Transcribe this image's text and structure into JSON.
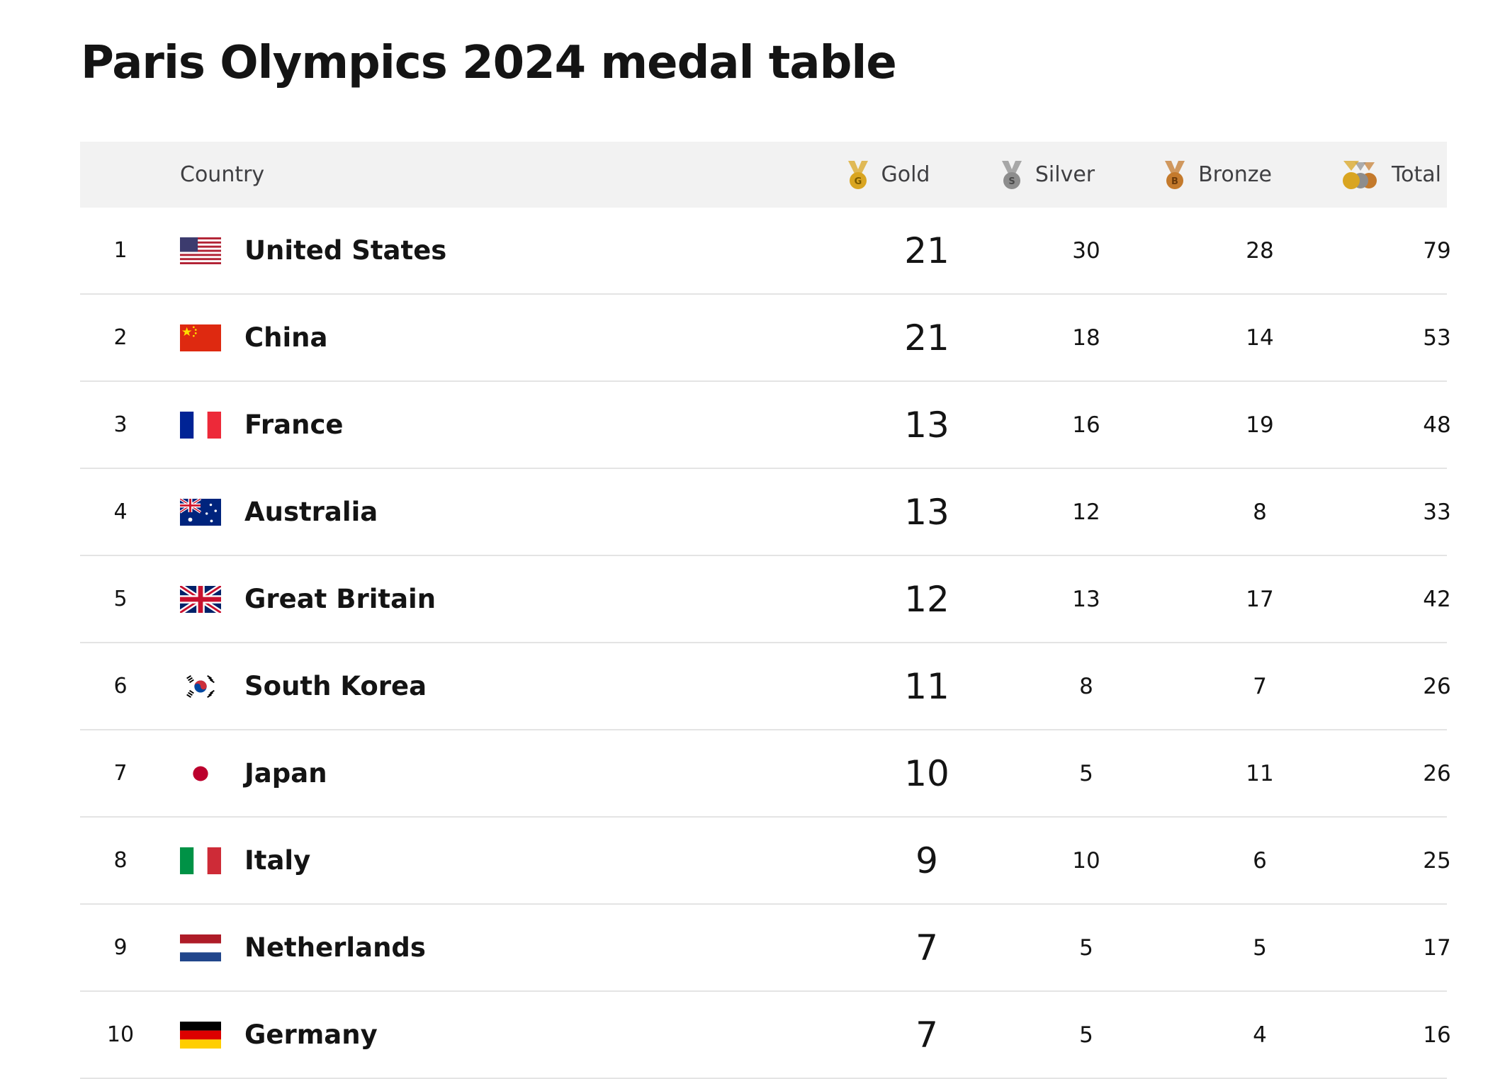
{
  "page": {
    "title": "Paris Olympics 2024 medal table"
  },
  "colors": {
    "gold": "#d9a521",
    "silver": "#8d8d8d",
    "bronze": "#c47a2c",
    "text": "#141414",
    "header_bg": "#f2f2f2",
    "divider": "#e4e4e4"
  },
  "table": {
    "headers": {
      "country": "Country",
      "gold": "Gold",
      "silver": "Silver",
      "bronze": "Bronze",
      "total": "Total"
    },
    "header_icons": {
      "gold": "gold-medal-icon",
      "silver": "silver-medal-icon",
      "bronze": "bronze-medal-icon",
      "total": "all-medals-icon"
    },
    "rows": [
      {
        "rank": "1",
        "country": "United States",
        "flag": "us",
        "gold": "21",
        "silver": "30",
        "bronze": "28",
        "total": "79"
      },
      {
        "rank": "2",
        "country": "China",
        "flag": "cn",
        "gold": "21",
        "silver": "18",
        "bronze": "14",
        "total": "53"
      },
      {
        "rank": "3",
        "country": "France",
        "flag": "fr",
        "gold": "13",
        "silver": "16",
        "bronze": "19",
        "total": "48"
      },
      {
        "rank": "4",
        "country": "Australia",
        "flag": "au",
        "gold": "13",
        "silver": "12",
        "bronze": "8",
        "total": "33"
      },
      {
        "rank": "5",
        "country": "Great Britain",
        "flag": "gb",
        "gold": "12",
        "silver": "13",
        "bronze": "17",
        "total": "42"
      },
      {
        "rank": "6",
        "country": "South Korea",
        "flag": "kr",
        "gold": "11",
        "silver": "8",
        "bronze": "7",
        "total": "26"
      },
      {
        "rank": "7",
        "country": "Japan",
        "flag": "jp",
        "gold": "10",
        "silver": "5",
        "bronze": "11",
        "total": "26"
      },
      {
        "rank": "8",
        "country": "Italy",
        "flag": "it",
        "gold": "9",
        "silver": "10",
        "bronze": "6",
        "total": "25"
      },
      {
        "rank": "9",
        "country": "Netherlands",
        "flag": "nl",
        "gold": "7",
        "silver": "5",
        "bronze": "5",
        "total": "17"
      },
      {
        "rank": "10",
        "country": "Germany",
        "flag": "de",
        "gold": "7",
        "silver": "5",
        "bronze": "4",
        "total": "16"
      }
    ]
  }
}
